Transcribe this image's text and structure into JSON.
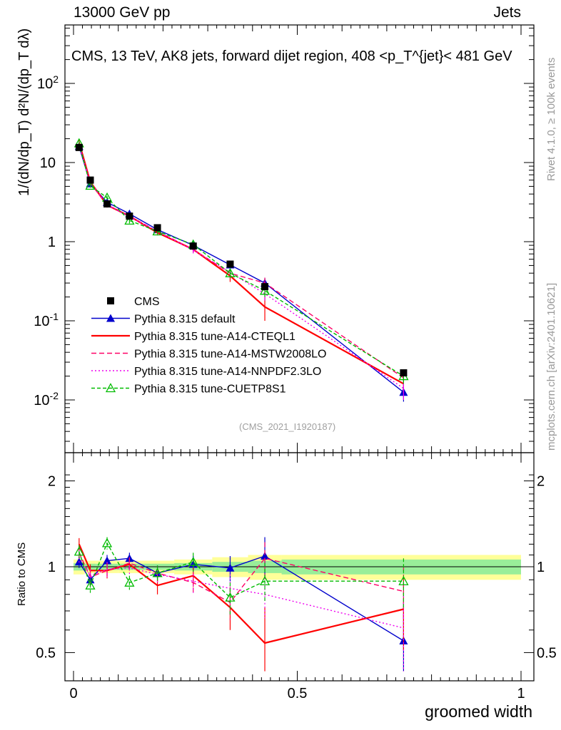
{
  "header": {
    "left": "13000 GeV pp",
    "right": "Jets"
  },
  "side": {
    "top": "Rivet 4.1.0, ≥ 100k events",
    "bottom": "mcplots.cern.ch [arXiv:2401.10621]"
  },
  "watermark": "(CMS_2021_I1920187)",
  "chart_data": {
    "type": "line",
    "title": "CMS, 13 TeV, AK8 jets, forward dijet region, 408 <p_T^{jet}< 481 GeV",
    "xlabel": "groomed width",
    "ylabel": "1/(dN/dp_T) d²N/(dp_T dλ)",
    "ratio_ylabel": "Ratio to CMS",
    "xlim": [
      -0.02,
      1.0
    ],
    "ylim": [
      0.0025,
      400
    ],
    "yscale": "log",
    "ratio_ylim": [
      0.42,
      2.3
    ],
    "x_ticks": [
      "0",
      "0.5",
      "1"
    ],
    "y_ticks": [
      "10^-2",
      "10^-1",
      "1",
      "10",
      "10^2"
    ],
    "ratio_ticks": [
      "0.5",
      "1",
      "2"
    ],
    "x": [
      0.0125,
      0.0375,
      0.075,
      0.125,
      0.1875,
      0.2675,
      0.35,
      0.4275,
      0.7375
    ],
    "data_band_x": [
      0.0,
      0.025,
      0.05,
      0.1,
      0.15,
      0.225,
      0.31,
      0.39,
      0.465,
      1.0
    ],
    "data_band_stat": [
      0.03,
      0.025,
      0.025,
      0.025,
      0.025,
      0.03,
      0.04,
      0.05,
      0.06
    ],
    "data_band_total": [
      0.06,
      0.05,
      0.05,
      0.05,
      0.05,
      0.06,
      0.08,
      0.1,
      0.1
    ],
    "series": [
      {
        "name": "CMS",
        "key": "cms",
        "color": "#000000",
        "dash": "",
        "marker": "square",
        "values": [
          15.5,
          6.0,
          3.0,
          2.1,
          1.5,
          0.88,
          0.52,
          0.27,
          0.022
        ],
        "errors": [
          0.6,
          0.25,
          0.12,
          0.08,
          0.06,
          0.04,
          0.03,
          0.02,
          0.002
        ],
        "ratio": [
          1.0,
          1.0,
          1.0,
          1.0,
          1.0,
          1.0,
          1.0,
          1.0,
          1.0
        ]
      },
      {
        "name": "Pythia 8.315 default",
        "key": "default",
        "color": "#0000cc",
        "dash": "",
        "marker": "triangle",
        "values": [
          16.0,
          5.4,
          3.15,
          2.25,
          1.42,
          0.9,
          0.51,
          0.3,
          0.0125
        ],
        "errors": [
          1.0,
          0.3,
          0.2,
          0.15,
          0.1,
          0.06,
          0.05,
          0.05,
          0.003
        ],
        "ratio": [
          1.04,
          0.9,
          1.05,
          1.07,
          0.95,
          1.02,
          0.99,
          1.09,
          0.55
        ],
        "ratio_err": [
          0.05,
          0.05,
          0.05,
          0.05,
          0.06,
          0.07,
          0.1,
          0.18,
          0.2
        ]
      },
      {
        "name": "Pythia 8.315 tune-A14-CTEQL1",
        "key": "cteq",
        "color": "#ff0000",
        "dash": "",
        "marker": "none",
        "values": [
          18.0,
          5.7,
          2.9,
          2.1,
          1.3,
          0.8,
          0.37,
          0.15,
          0.016
        ],
        "errors": [
          1.2,
          0.35,
          0.2,
          0.15,
          0.1,
          0.07,
          0.06,
          0.05,
          0.004
        ],
        "ratio": [
          1.2,
          0.97,
          0.97,
          1.02,
          0.86,
          0.93,
          0.72,
          0.54,
          0.71
        ],
        "ratio_err": [
          0.06,
          0.05,
          0.06,
          0.05,
          0.06,
          0.08,
          0.12,
          0.18,
          0.2
        ]
      },
      {
        "name": "Pythia 8.315 tune-A14-MSTW2008LO",
        "key": "mstw",
        "color": "#ff0066",
        "dash": "7,4",
        "marker": "none",
        "values": [
          17.0,
          5.5,
          2.9,
          2.1,
          1.35,
          0.8,
          0.4,
          0.3,
          0.019
        ],
        "errors": [
          1.1,
          0.3,
          0.2,
          0.15,
          0.1,
          0.07,
          0.05,
          0.05,
          0.004
        ],
        "ratio": [
          1.12,
          0.92,
          0.97,
          1.03,
          0.95,
          0.88,
          0.75,
          1.07,
          0.82
        ],
        "ratio_err": [
          0.06,
          0.05,
          0.06,
          0.05,
          0.06,
          0.08,
          0.1,
          0.15,
          0.18
        ]
      },
      {
        "name": "Pythia 8.315 tune-A14-NNPDF2.3LO",
        "key": "nnpdf",
        "color": "#ee00ee",
        "dash": "2,3",
        "marker": "none",
        "values": [
          16.5,
          5.6,
          2.95,
          2.05,
          1.35,
          0.78,
          0.41,
          0.22,
          0.014
        ],
        "errors": [
          1.0,
          0.3,
          0.2,
          0.15,
          0.1,
          0.07,
          0.05,
          0.04,
          0.004
        ],
        "ratio": [
          1.08,
          0.93,
          0.98,
          0.99,
          0.94,
          0.89,
          0.84,
          0.8,
          0.61
        ],
        "ratio_err": [
          0.06,
          0.05,
          0.06,
          0.05,
          0.06,
          0.08,
          0.1,
          0.14,
          0.18
        ]
      },
      {
        "name": "Pythia 8.315 tune-CUETP8S1",
        "key": "cuet",
        "color": "#00bb00",
        "dash": "5,3",
        "marker": "triangle-open",
        "values": [
          17.5,
          5.1,
          3.6,
          1.85,
          1.35,
          0.92,
          0.4,
          0.24,
          0.02
        ],
        "errors": [
          1.1,
          0.3,
          0.2,
          0.15,
          0.1,
          0.07,
          0.05,
          0.04,
          0.004
        ],
        "ratio": [
          1.13,
          0.86,
          1.21,
          0.88,
          0.95,
          1.04,
          0.78,
          0.89,
          0.89
        ],
        "ratio_err": [
          0.06,
          0.05,
          0.06,
          0.05,
          0.06,
          0.08,
          0.1,
          0.14,
          0.18
        ]
      }
    ]
  }
}
